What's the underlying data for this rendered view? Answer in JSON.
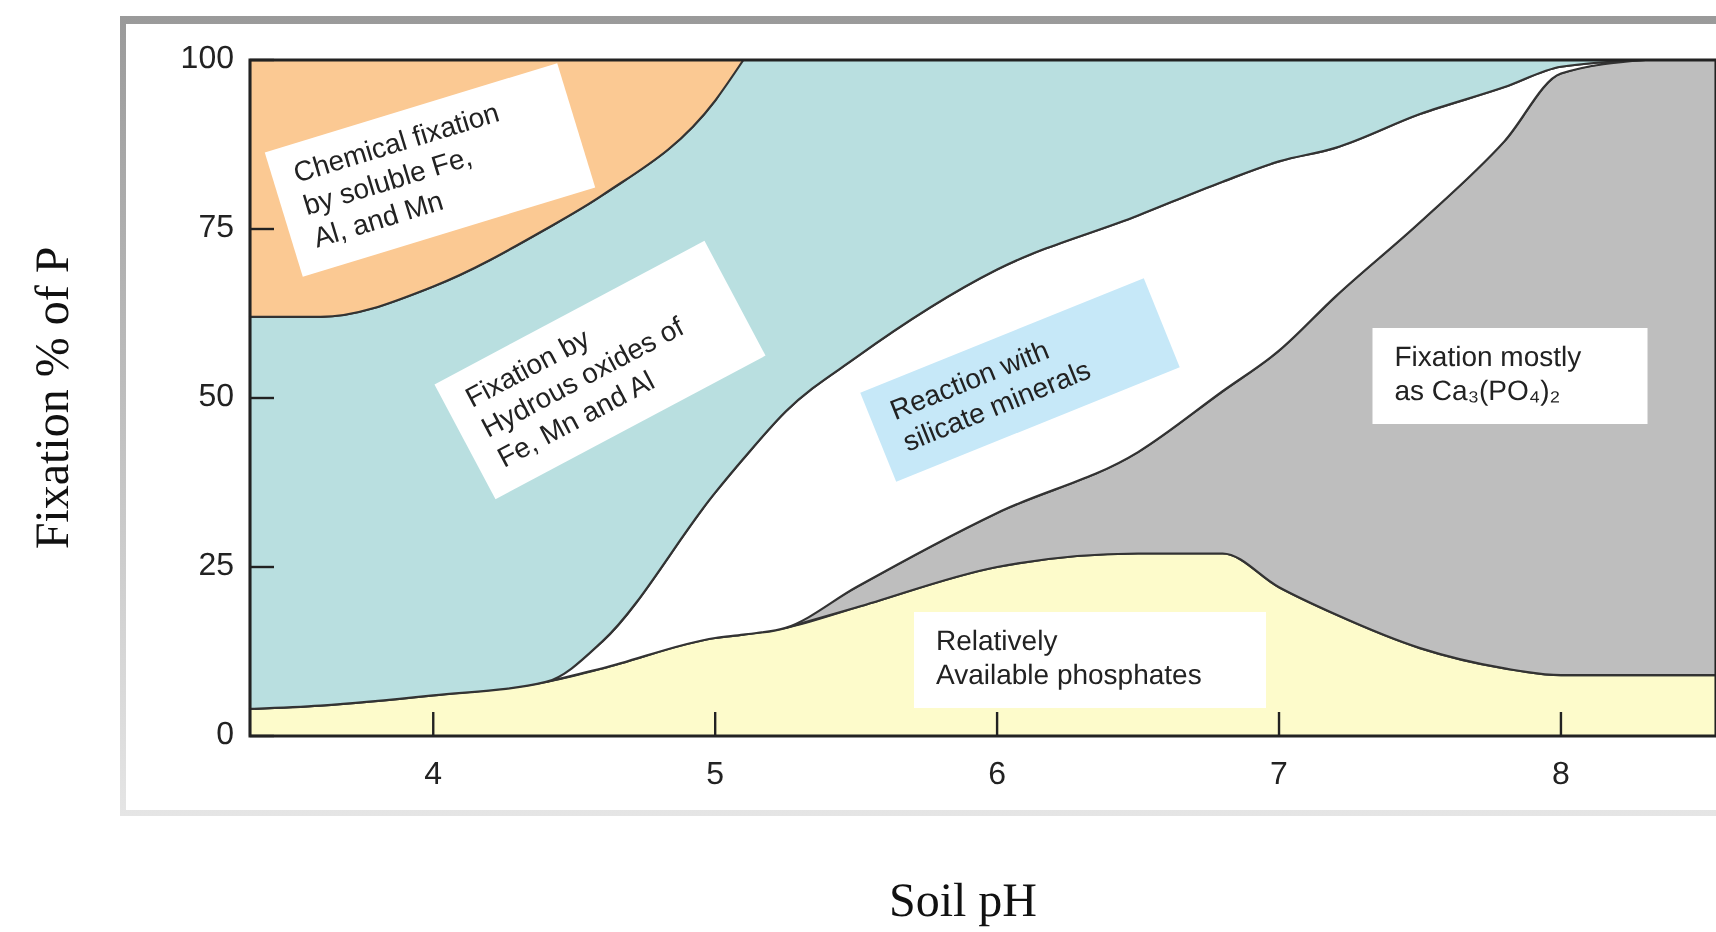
{
  "chart_data": {
    "type": "area",
    "stacked": true,
    "xlabel": "Soil pH",
    "ylabel": "Fixation % of P",
    "x": [
      3.35,
      3.6,
      4.0,
      4.4,
      4.6,
      5.0,
      5.1,
      5.25,
      5.5,
      6.0,
      6.5,
      6.8,
      7.0,
      7.2,
      7.5,
      7.8,
      8.0,
      8.3,
      8.55
    ],
    "series": [
      {
        "color": "#fdfbcb",
        "values": [
          4,
          4.5,
          6,
          8,
          10,
          14.5,
          15,
          16,
          19,
          25,
          27,
          27,
          22,
          18,
          13,
          10,
          9,
          9,
          9
        ]
      },
      {
        "color": "#bebebe",
        "values": [
          null,
          null,
          null,
          null,
          null,
          null,
          null,
          0,
          3,
          8,
          15,
          24,
          35,
          47,
          63,
          78,
          89,
          91,
          91
        ]
      },
      {
        "color": "#ffffff",
        "values": [
          null,
          null,
          null,
          0,
          4,
          21.5,
          26,
          32,
          34,
          36,
          35,
          31,
          28,
          22,
          16,
          8,
          1,
          0,
          null
        ]
      },
      {
        "color": "#b9dfe0",
        "values": [
          58,
          57.5,
          60.5,
          67,
          66,
          58,
          59,
          52,
          44,
          31,
          23,
          18,
          15,
          13,
          8,
          4,
          1,
          0,
          null
        ]
      },
      {
        "color": "#fbc993",
        "values": [
          38,
          38,
          33.5,
          25,
          20,
          6,
          0,
          null,
          null,
          null,
          null,
          null,
          null,
          null,
          null,
          null,
          null,
          null,
          null
        ]
      }
    ],
    "xlim": [
      3.35,
      8.55
    ],
    "ylim": [
      0,
      100
    ],
    "xticks": [
      4,
      5,
      6,
      7,
      8
    ],
    "yticks": [
      0,
      25,
      50,
      75,
      100
    ],
    "grid": false,
    "annotations": [
      "Chemical fixation\nby soluble Fe,\nAl, and Mn",
      "Fixation by\nHydrous oxides of\nFe, Mn and Al",
      "Reaction with\nsilicate minerals",
      "Fixation mostly\nas Ca₃(PO₄)₂",
      "Relatively\nAvailable phosphates"
    ]
  }
}
